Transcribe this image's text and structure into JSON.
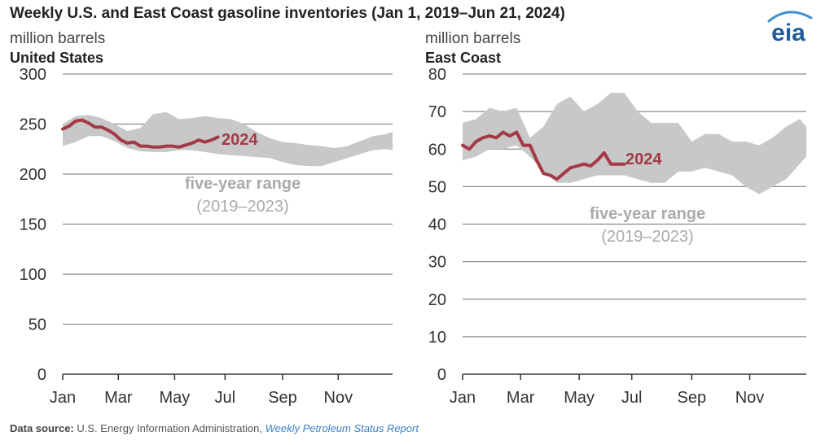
{
  "title": "Weekly U.S. and East Coast gasoline inventories (Jan 1, 2019–Jun 21, 2024)",
  "logo_text": "eia",
  "colors": {
    "series_2024": "#a33a46",
    "range_band": "#c8c8c8",
    "range_text": "#aaaaaa",
    "link": "#3b7fc4"
  },
  "footer": {
    "label": "Data source:",
    "source": "U.S. Energy Information Administration,",
    "report": "Weekly Petroleum Status Report"
  },
  "chart_data": [
    {
      "type": "area",
      "title": "United States",
      "ylabel": "million barrels",
      "xlabel": "",
      "ylim": [
        0,
        300
      ],
      "yticks": [
        0,
        50,
        100,
        150,
        200,
        250,
        300
      ],
      "xtick_labels": [
        "Jan",
        "Mar",
        "May",
        "Jul",
        "Sep",
        "Nov"
      ],
      "grid": true,
      "x_unit": "week of year",
      "xlim": [
        1,
        52
      ],
      "series": [
        {
          "name": "2024",
          "x": [
            1,
            2,
            3,
            4,
            5,
            6,
            7,
            8,
            9,
            10,
            11,
            12,
            13,
            14,
            15,
            16,
            17,
            18,
            19,
            20,
            21,
            22,
            23,
            24,
            25
          ],
          "values": [
            245,
            248,
            253,
            254,
            251,
            247,
            247,
            244,
            240,
            234,
            231,
            232,
            228,
            228,
            227,
            227,
            228,
            228,
            227,
            229,
            231,
            234,
            232,
            234,
            237
          ]
        },
        {
          "name": "five-year range",
          "years": "(2019–2023)",
          "x": [
            1,
            3,
            5,
            7,
            9,
            11,
            13,
            15,
            17,
            19,
            21,
            23,
            25,
            27,
            29,
            31,
            33,
            35,
            37,
            39,
            41,
            43,
            45,
            47,
            49,
            51,
            52
          ],
          "low": [
            228,
            232,
            238,
            238,
            233,
            226,
            223,
            222,
            222,
            224,
            224,
            222,
            220,
            219,
            218,
            217,
            216,
            212,
            209,
            208,
            208,
            212,
            216,
            220,
            224,
            225,
            224
          ],
          "high": [
            250,
            258,
            259,
            256,
            250,
            243,
            246,
            260,
            262,
            255,
            256,
            258,
            256,
            255,
            250,
            242,
            236,
            232,
            231,
            229,
            228,
            226,
            228,
            233,
            238,
            240,
            242
          ]
        }
      ]
    },
    {
      "type": "area",
      "title": "East Coast",
      "ylabel": "million barrels",
      "xlabel": "",
      "ylim": [
        0,
        80
      ],
      "yticks": [
        0,
        10,
        20,
        30,
        40,
        50,
        60,
        70,
        80
      ],
      "xtick_labels": [
        "Jan",
        "Mar",
        "May",
        "Jul",
        "Sep",
        "Nov"
      ],
      "grid": true,
      "x_unit": "week of year",
      "xlim": [
        1,
        52
      ],
      "series": [
        {
          "name": "2024",
          "x": [
            1,
            2,
            3,
            4,
            5,
            6,
            7,
            8,
            9,
            10,
            11,
            12,
            13,
            14,
            15,
            16,
            17,
            18,
            19,
            20,
            21,
            22,
            23,
            24,
            25
          ],
          "values": [
            61,
            60,
            62,
            63,
            63.5,
            63,
            64.5,
            63.5,
            64.5,
            61,
            61,
            57,
            53.5,
            53,
            52,
            53.5,
            55,
            55.5,
            56,
            55.5,
            57,
            59,
            56,
            56,
            56
          ]
        },
        {
          "name": "five-year range",
          "years": "(2019–2023)",
          "x": [
            1,
            3,
            5,
            7,
            9,
            11,
            13,
            15,
            17,
            19,
            21,
            23,
            25,
            27,
            29,
            31,
            33,
            35,
            37,
            39,
            41,
            43,
            45,
            47,
            49,
            51,
            52
          ],
          "low": [
            57,
            58,
            60,
            60,
            61,
            58,
            54,
            51,
            51,
            52,
            53,
            53,
            53,
            52,
            51,
            51,
            54,
            54,
            55,
            54,
            53,
            50,
            48,
            50,
            52,
            56,
            58
          ],
          "high": [
            67,
            68,
            71,
            70,
            71,
            63,
            66,
            72,
            74,
            70,
            72,
            75,
            75,
            70,
            67,
            67,
            67,
            62,
            64,
            64,
            62,
            62,
            61,
            63,
            66,
            68,
            66
          ]
        }
      ]
    }
  ]
}
